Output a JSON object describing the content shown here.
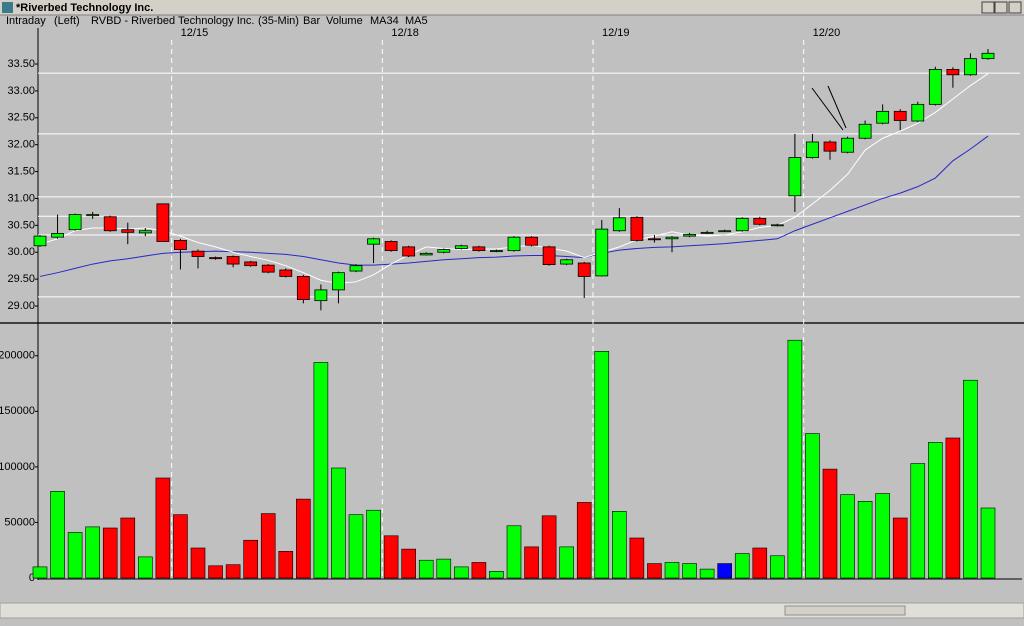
{
  "window": {
    "title": "*Riverbed Technology Inc."
  },
  "header": {
    "mode": "Intraday",
    "side": "(Left)",
    "symbol": "RVBD - Riverbed Technology Inc.",
    "interval": "(35-Min)",
    "style": "Bar"
  },
  "chart_data": [
    {
      "type": "candlestick",
      "categories": [
        null,
        null,
        null,
        null,
        null,
        null,
        null,
        "12/15",
        null,
        null,
        null,
        null,
        null,
        null,
        null,
        null,
        null,
        null,
        null,
        "12/18",
        null,
        null,
        null,
        null,
        null,
        null,
        null,
        null,
        null,
        null,
        null,
        "12/19",
        null,
        null,
        null,
        null,
        null,
        null,
        null,
        null,
        null,
        null,
        null,
        "12/20",
        null,
        null,
        null,
        null,
        null,
        null,
        null,
        null,
        null,
        null,
        null
      ],
      "open": [
        30.12,
        30.28,
        30.42,
        30.68,
        30.66,
        30.42,
        30.36,
        30.9,
        30.22,
        30.02,
        29.9,
        29.92,
        29.82,
        29.76,
        29.67,
        29.55,
        29.1,
        29.3,
        29.65,
        30.15,
        30.2,
        30.1,
        29.95,
        30.0,
        30.07,
        30.1,
        30.02,
        30.03,
        30.28,
        30.1,
        29.78,
        29.8,
        29.56,
        30.4,
        30.65,
        30.25,
        30.25,
        30.3,
        30.36,
        30.4,
        30.4,
        30.63,
        30.5,
        31.05,
        31.76,
        32.05,
        31.86,
        32.12,
        32.4,
        32.62,
        32.44,
        32.75,
        33.4,
        33.3,
        33.6
      ],
      "high": [
        30.32,
        30.7,
        30.72,
        30.75,
        30.68,
        30.55,
        30.45,
        30.9,
        30.25,
        30.05,
        29.92,
        29.94,
        29.84,
        29.78,
        29.7,
        29.58,
        29.4,
        29.64,
        29.78,
        30.27,
        30.22,
        30.12,
        30.0,
        30.07,
        30.14,
        30.12,
        30.05,
        30.3,
        30.3,
        30.12,
        29.88,
        29.82,
        30.6,
        30.82,
        30.67,
        30.32,
        30.3,
        30.36,
        30.4,
        30.42,
        30.65,
        30.66,
        30.53,
        32.2,
        32.2,
        32.08,
        32.15,
        32.45,
        32.75,
        32.66,
        32.8,
        33.45,
        33.44,
        33.7,
        33.78
      ],
      "low": [
        30.1,
        30.25,
        30.4,
        30.62,
        30.38,
        30.15,
        30.3,
        30.2,
        29.68,
        29.7,
        29.86,
        29.72,
        29.73,
        29.61,
        29.53,
        29.05,
        28.92,
        29.05,
        29.63,
        29.8,
        30.01,
        29.91,
        29.94,
        29.98,
        30.05,
        30.01,
        30.0,
        30.01,
        30.11,
        29.75,
        29.76,
        29.15,
        29.55,
        30.38,
        30.2,
        30.18,
        30.0,
        30.28,
        30.34,
        30.38,
        30.38,
        30.5,
        30.48,
        30.75,
        31.74,
        31.72,
        31.84,
        32.1,
        32.38,
        32.27,
        32.42,
        32.73,
        33.06,
        33.28,
        33.58
      ],
      "close": [
        30.3,
        30.35,
        30.7,
        30.7,
        30.4,
        30.37,
        30.4,
        30.2,
        30.05,
        29.92,
        29.88,
        29.78,
        29.75,
        29.63,
        29.55,
        29.12,
        29.3,
        29.62,
        29.75,
        30.25,
        30.03,
        29.93,
        29.98,
        30.05,
        30.12,
        30.03,
        30.03,
        30.28,
        30.13,
        29.77,
        29.86,
        29.55,
        30.43,
        30.64,
        30.22,
        30.24,
        30.28,
        30.33,
        30.37,
        30.4,
        30.63,
        30.52,
        30.51,
        31.76,
        32.05,
        31.88,
        32.12,
        32.38,
        32.62,
        32.45,
        32.75,
        33.4,
        33.3,
        33.6,
        33.7
      ],
      "up_color": "#00ff00",
      "down_color": "#ff0000",
      "series": [
        {
          "name": "MA34",
          "color": "#2828c8",
          "values": [
            29.55,
            29.62,
            29.7,
            29.78,
            29.84,
            29.88,
            29.93,
            29.98,
            30.0,
            30.01,
            30.02,
            30.01,
            30.0,
            29.98,
            29.96,
            29.92,
            29.86,
            29.8,
            29.76,
            29.76,
            29.78,
            29.8,
            29.83,
            29.86,
            29.88,
            29.9,
            29.91,
            29.93,
            29.94,
            29.94,
            29.92,
            29.9,
            29.98,
            30.04,
            30.07,
            30.09,
            30.1,
            30.12,
            30.14,
            30.16,
            30.19,
            30.22,
            30.25,
            30.4,
            30.52,
            30.64,
            30.76,
            30.88,
            31.0,
            31.1,
            31.22,
            31.38,
            31.7,
            31.92,
            32.16
          ]
        },
        {
          "name": "MA5",
          "color": "#ffffff",
          "values": [
            30.15,
            30.25,
            30.4,
            30.45,
            30.45,
            30.43,
            30.45,
            30.4,
            30.3,
            30.18,
            30.1,
            30.0,
            29.92,
            29.85,
            29.75,
            29.62,
            29.48,
            29.42,
            29.45,
            29.58,
            29.78,
            29.95,
            30.1,
            30.07,
            30.05,
            30.06,
            30.06,
            30.1,
            30.13,
            30.08,
            30.02,
            29.9,
            30.0,
            30.1,
            30.23,
            30.3,
            30.38,
            30.32,
            30.3,
            30.32,
            30.38,
            30.46,
            30.5,
            30.65,
            30.9,
            31.15,
            31.45,
            31.9,
            32.12,
            32.25,
            32.4,
            32.6,
            32.85,
            33.1,
            33.32
          ]
        }
      ],
      "levels": [
        33.33,
        32.2,
        31.03,
        30.67,
        30.32,
        29.17
      ],
      "ylim": [
        28.74,
        34.17
      ],
      "yticks": [
        {
          "value": 29,
          "label": "29.00"
        },
        {
          "value": 29.5,
          "label": "29.50"
        },
        {
          "value": 30,
          "label": "30.00"
        },
        {
          "value": 30.5,
          "label": "30.50"
        },
        {
          "value": 31,
          "label": "31.00"
        },
        {
          "value": 31.5,
          "label": "31.50"
        },
        {
          "value": 32,
          "label": "32.00"
        },
        {
          "value": 32.5,
          "label": "32.50"
        },
        {
          "value": 33,
          "label": "33.00"
        },
        {
          "value": 33.5,
          "label": "33.50"
        }
      ]
    },
    {
      "type": "bar",
      "title": "Volume",
      "title_color": "#2828c8",
      "flat_color": "#0000ff",
      "values": [
        10000,
        78000,
        41000,
        46000,
        45000,
        54000,
        19000,
        90000,
        57000,
        27000,
        11000,
        12000,
        34000,
        58000,
        24000,
        71000,
        194000,
        99000,
        57000,
        61000,
        38000,
        26000,
        16000,
        17000,
        10000,
        14000,
        6000,
        47000,
        28000,
        56000,
        28000,
        68000,
        204000,
        60000,
        36000,
        13000,
        14000,
        13000,
        8000,
        13000,
        22000,
        27000,
        20000,
        214000,
        130000,
        98000,
        75000,
        69000,
        76000,
        54000,
        103000,
        122000,
        126000,
        178000,
        63000
      ],
      "ylim": [
        0,
        225000
      ],
      "yticks": [
        0,
        50000,
        100000,
        150000,
        200000
      ]
    }
  ]
}
